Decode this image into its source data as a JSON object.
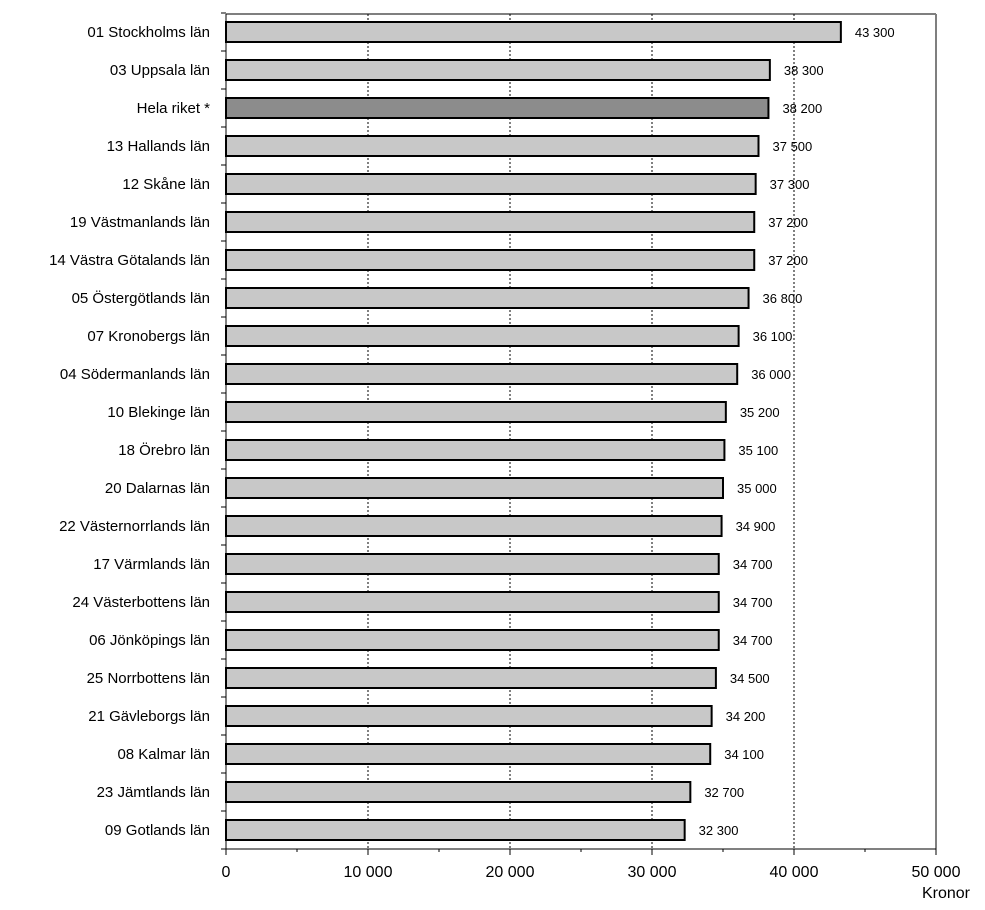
{
  "chart_data": {
    "type": "bar",
    "orientation": "horizontal",
    "categories": [
      "01 Stockholms län",
      "03 Uppsala län",
      "Hela riket *",
      "13 Hallands län",
      "12 Skåne län",
      "19 Västmanlands län",
      "14 Västra Götalands län",
      "05 Östergötlands län",
      "07 Kronobergs län",
      "04 Södermanlands län",
      "10 Blekinge län",
      "18 Örebro län",
      "20 Dalarnas län",
      "22 Västernorrlands län",
      "17 Värmlands län",
      "24 Västerbottens län",
      "06 Jönköpings län",
      "25 Norrbottens län",
      "21 Gävleborgs län",
      "08 Kalmar län",
      "23 Jämtlands län",
      "09 Gotlands län"
    ],
    "values": [
      43300,
      38300,
      38200,
      37500,
      37300,
      37200,
      37200,
      36800,
      36100,
      36000,
      35200,
      35100,
      35000,
      34900,
      34700,
      34700,
      34700,
      34500,
      34200,
      34100,
      32700,
      32300
    ],
    "value_labels": [
      "43 300",
      "38 300",
      "38 200",
      "37 500",
      "37 300",
      "37 200",
      "37 200",
      "36 800",
      "36 100",
      "36 000",
      "35 200",
      "35 100",
      "35 000",
      "34 900",
      "34 700",
      "34 700",
      "34 700",
      "34 500",
      "34 200",
      "34 100",
      "32 700",
      "32 300"
    ],
    "highlight_category": "Hela riket *",
    "xlim": [
      0,
      50000
    ],
    "xticks": [
      0,
      10000,
      20000,
      30000,
      40000,
      50000
    ],
    "xtick_labels": [
      "0",
      "10 000",
      "20 000",
      "30 000",
      "40 000",
      "50 000"
    ],
    "xlabel": "Kronor",
    "grid": "vertical dashed",
    "colors": {
      "bar": "#c8c8c8",
      "highlight_bar": "#8c8c8c",
      "bar_stroke": "#000000",
      "axis": "#7f7f7f"
    }
  }
}
